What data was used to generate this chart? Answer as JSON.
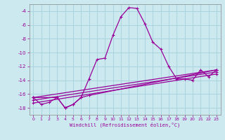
{
  "xlabel": "Windchill (Refroidissement éolien,°C)",
  "background_color": "#cce9f0",
  "grid_color": "#aad4de",
  "line_color": "#990099",
  "spine_color": "#888888",
  "xlim": [
    -0.5,
    23.5
  ],
  "ylim": [
    -19,
    -3
  ],
  "yticks": [
    -18,
    -16,
    -14,
    -12,
    -10,
    -8,
    -6,
    -4
  ],
  "xticks": [
    0,
    1,
    2,
    3,
    4,
    5,
    6,
    7,
    8,
    9,
    10,
    11,
    12,
    13,
    14,
    15,
    16,
    17,
    18,
    19,
    20,
    21,
    22,
    23
  ],
  "lines": [
    {
      "x": [
        0,
        1,
        2,
        3,
        4,
        5,
        6,
        7,
        8,
        9,
        10,
        11,
        12,
        13,
        14,
        15,
        16,
        17,
        18,
        19,
        20,
        21,
        22,
        23
      ],
      "y": [
        -16.5,
        -17.5,
        -17.2,
        -16.5,
        -18.0,
        -17.5,
        -16.5,
        -13.8,
        -11.0,
        -10.8,
        -7.5,
        -4.8,
        -3.5,
        -3.6,
        -5.8,
        -8.5,
        -9.5,
        -12.0,
        -13.8,
        -13.8,
        -14.0,
        -12.5,
        -13.5,
        -12.5
      ]
    },
    {
      "x": [
        0,
        3,
        4,
        5,
        6,
        7,
        23
      ],
      "y": [
        -16.5,
        -16.5,
        -18.0,
        -17.5,
        -16.5,
        -16.2,
        -12.5
      ]
    },
    {
      "x": [
        0,
        23
      ],
      "y": [
        -16.5,
        -12.5
      ]
    },
    {
      "x": [
        0,
        23
      ],
      "y": [
        -16.9,
        -12.8
      ]
    },
    {
      "x": [
        0,
        23
      ],
      "y": [
        -17.3,
        -13.1
      ]
    }
  ]
}
